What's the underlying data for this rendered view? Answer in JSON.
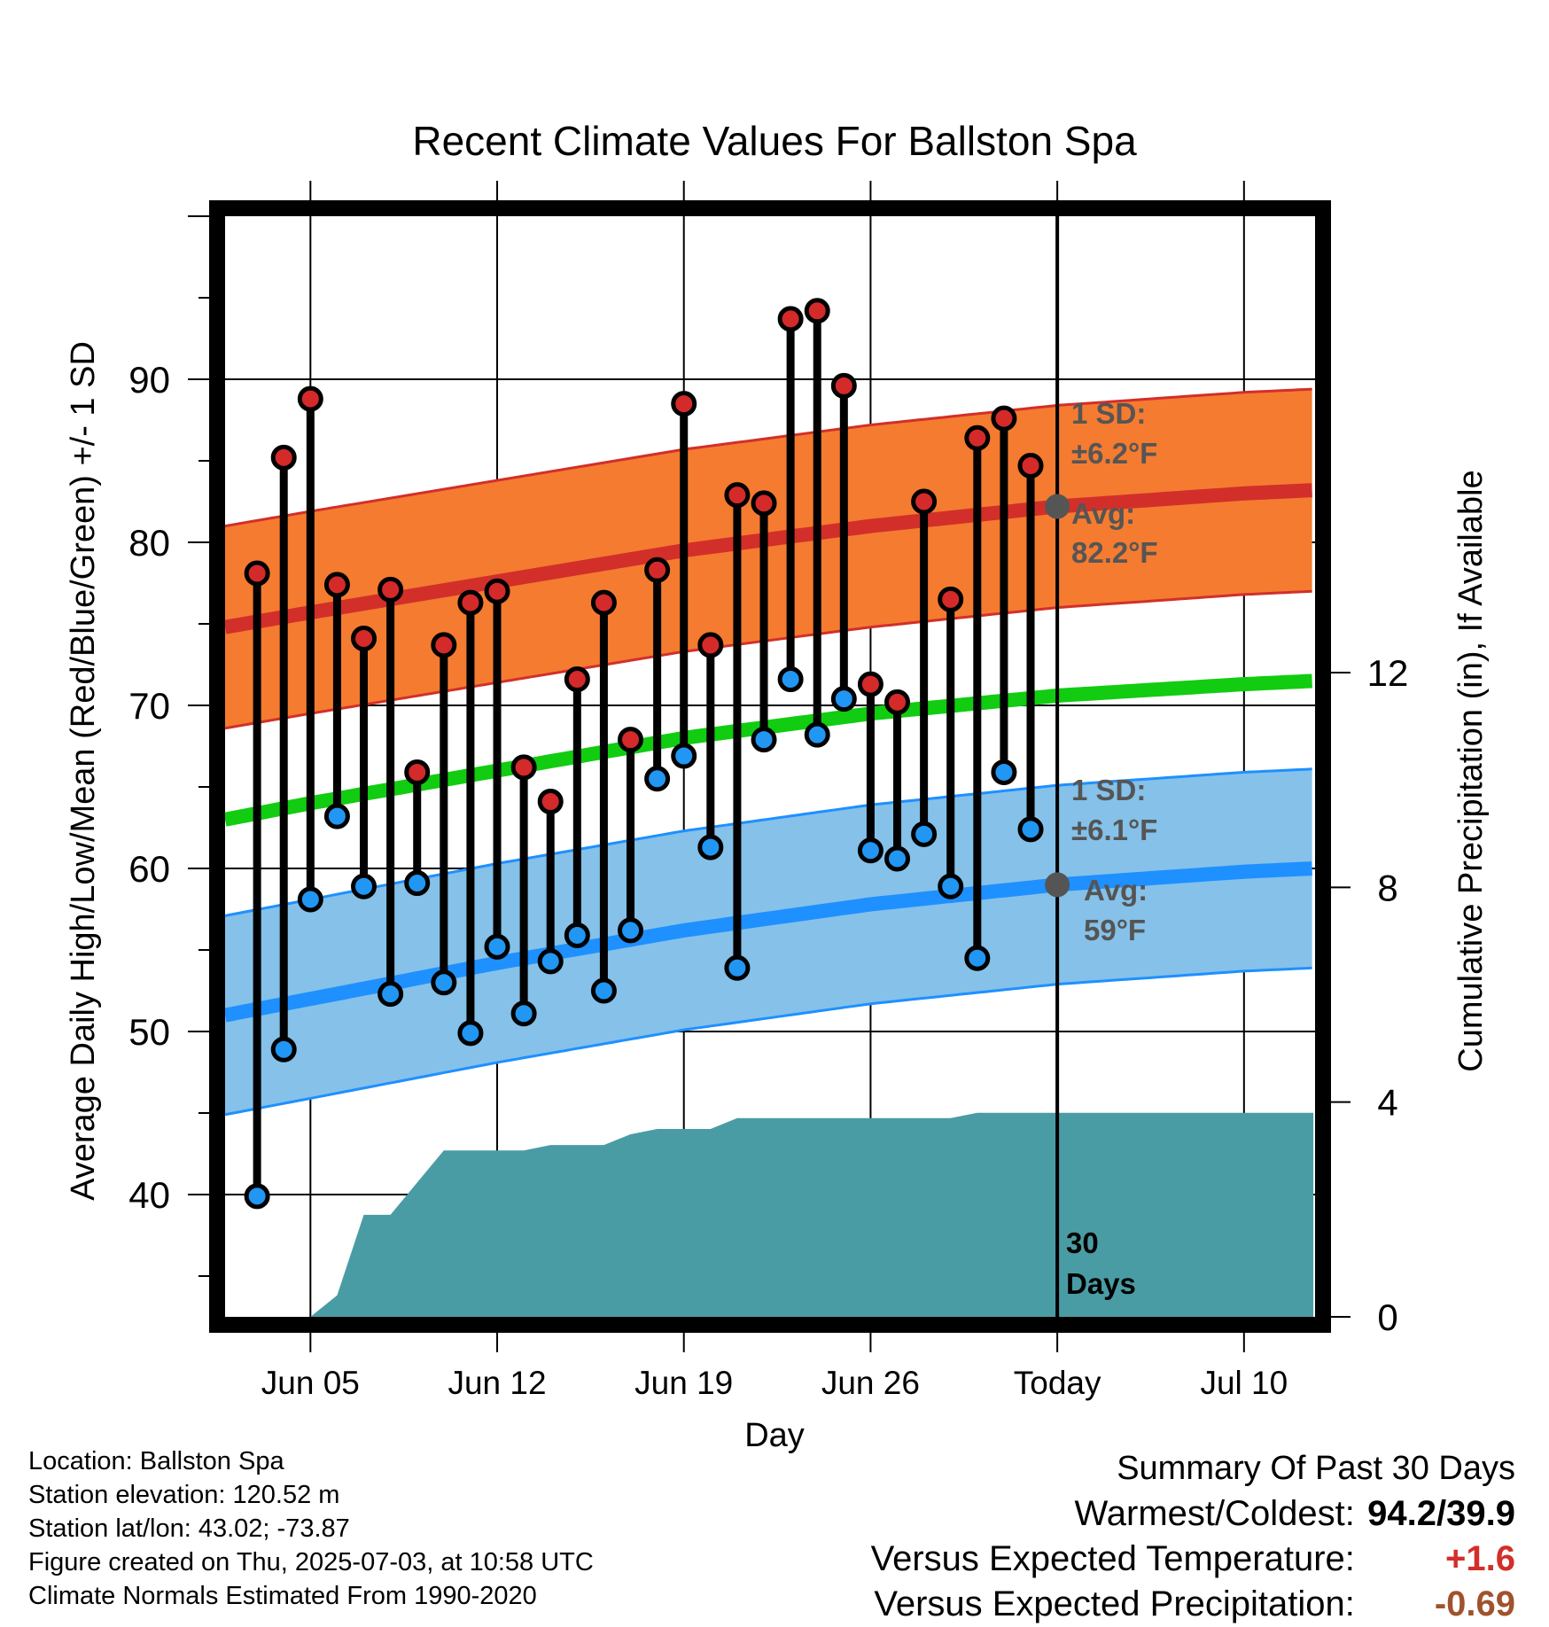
{
  "chart_data": {
    "type": "line",
    "title": "Recent Climate Values For Ballston Spa",
    "xlabel": "Day",
    "ylabel": "Average Daily High/Low/Mean (Red/Blue/Green) +/- 1 SD",
    "y2label": "Cumulative Precipitation (in), If Available",
    "x_range_days": [
      -3.3,
      12.6
    ],
    "ylim": [
      32.5,
      100
    ],
    "y2lim": [
      0,
      20.5
    ],
    "y_ticks": [
      40,
      50,
      60,
      70,
      80,
      90
    ],
    "y2_ticks": [
      0,
      4,
      8,
      12
    ],
    "x_ticks": [
      {
        "day": 5,
        "label": "Jun 05"
      },
      {
        "day": 12,
        "label": "Jun 12"
      },
      {
        "day": 19,
        "label": "Jun 19"
      },
      {
        "day": 26,
        "label": "Jun 26"
      },
      {
        "day": 33,
        "label": "Today"
      },
      {
        "day": 40,
        "label": "Jul 10"
      }
    ],
    "x_start_day": 1.8,
    "x_end_day": 42.6,
    "today_day": 33,
    "normal_high": {
      "day": [
        1.8,
        5,
        12,
        19,
        26,
        33,
        40,
        42.6
      ],
      "avg": [
        74.8,
        75.7,
        77.6,
        79.5,
        81.0,
        82.2,
        83.0,
        83.2
      ],
      "sd": 6.2
    },
    "normal_low": {
      "day": [
        1.8,
        5,
        12,
        19,
        26,
        33,
        40,
        42.6
      ],
      "avg": [
        51.0,
        52.0,
        54.2,
        56.2,
        57.8,
        59.0,
        59.8,
        60.0
      ],
      "sd": 6.1
    },
    "normal_mean": {
      "day": [
        1.8,
        5,
        12,
        19,
        26,
        33,
        40,
        42.6
      ],
      "avg": [
        63.0,
        64.0,
        66.0,
        68.0,
        69.5,
        70.6,
        71.3,
        71.5
      ]
    },
    "observed": {
      "day": [
        3,
        4,
        5,
        6,
        7,
        8,
        9,
        10,
        11,
        12,
        13,
        14,
        15,
        16,
        17,
        18,
        19,
        20,
        21,
        22,
        23,
        24,
        25,
        26,
        27,
        28,
        29,
        30,
        31,
        32
      ],
      "high": [
        78.1,
        85.2,
        88.8,
        77.4,
        74.1,
        77.1,
        65.9,
        73.7,
        76.3,
        77.0,
        66.2,
        64.1,
        71.6,
        76.3,
        67.9,
        78.3,
        88.5,
        73.7,
        82.9,
        82.4,
        93.7,
        94.2,
        89.6,
        71.3,
        70.2,
        82.5,
        76.5,
        86.4,
        87.6,
        84.7
      ],
      "low": [
        39.9,
        48.9,
        58.1,
        63.2,
        58.9,
        52.3,
        59.1,
        53.0,
        49.9,
        55.2,
        51.1,
        54.3,
        55.9,
        52.5,
        56.2,
        65.5,
        66.9,
        61.3,
        53.9,
        67.9,
        71.6,
        68.2,
        70.4,
        61.1,
        60.6,
        62.1,
        58.9,
        54.5,
        65.9,
        62.4
      ]
    },
    "precip": {
      "day": [
        5,
        6,
        7,
        8,
        9,
        10,
        11,
        12,
        13,
        14,
        15,
        16,
        17,
        18,
        19,
        20,
        21,
        22,
        23,
        24,
        25,
        26,
        27,
        28,
        29,
        30,
        31,
        32,
        33,
        42.6
      ],
      "cum": [
        0,
        0.4,
        1.9,
        1.9,
        2.5,
        3.1,
        3.1,
        3.1,
        3.1,
        3.2,
        3.2,
        3.2,
        3.4,
        3.5,
        3.5,
        3.5,
        3.7,
        3.7,
        3.7,
        3.7,
        3.7,
        3.7,
        3.7,
        3.7,
        3.7,
        3.8,
        3.8,
        3.8,
        3.8,
        3.8
      ]
    },
    "annotations": {
      "high_sd_1": "1 SD:",
      "high_sd_2": "±6.2°F",
      "high_avg_1": "Avg:",
      "high_avg_2": "82.2°F",
      "low_sd_1": "1 SD:",
      "low_sd_2": "±6.1°F",
      "low_avg_1": "Avg:",
      "low_avg_2": "59°F",
      "days_1": "30",
      "days_2": "Days"
    },
    "colors": {
      "high_band": "#f47b30",
      "high_line": "#d22f2a",
      "low_band": "#85c1e9",
      "low_line": "#1e90ff",
      "mean_line": "#11cc11",
      "precip": "#4a9ca4",
      "high_dot": "#d42a2a",
      "low_dot": "#2196f3",
      "annotation": "#555555"
    }
  },
  "info": {
    "location": "Location: Ballston Spa",
    "elevation": "Station elevation: 120.52 m",
    "latlon": "Station lat/lon: 43.02; -73.87",
    "created": "Figure created on Thu, 2025-07-03, at 10:58 UTC",
    "normals": "Climate Normals Estimated From 1990-2020"
  },
  "summary": {
    "heading": "Summary Of Past 30 Days",
    "warm_label": "Warmest/Coldest:",
    "warm_value": "94.2/39.9",
    "temp_label": "Versus Expected Temperature:",
    "temp_value": "+1.6",
    "temp_color": "#d22f2a",
    "precip_label": "Versus Expected Precipitation:",
    "precip_value": "-0.69",
    "precip_color": "#a0522d"
  }
}
